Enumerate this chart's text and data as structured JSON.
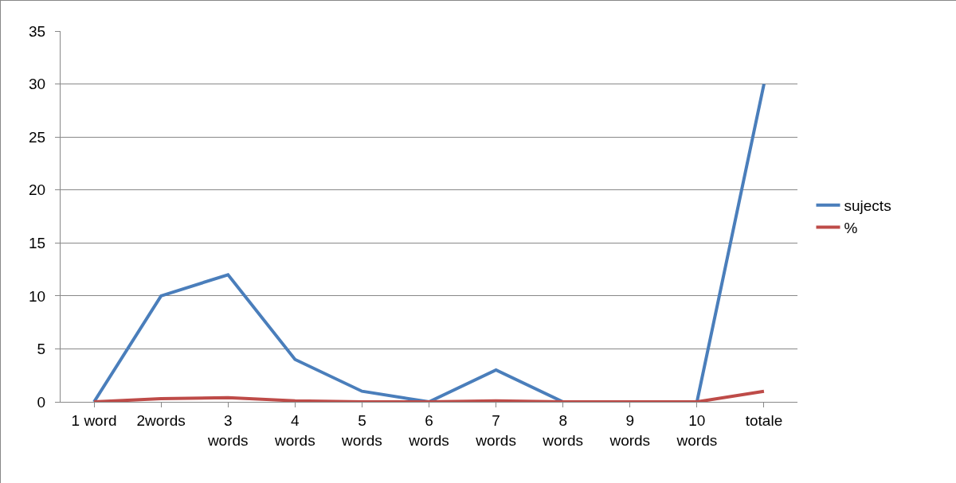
{
  "chart_data": {
    "type": "line",
    "categories": [
      "1 word",
      "2words",
      "3\nwords",
      "4\nwords",
      "5\nwords",
      "6\nwords",
      "7\nwords",
      "8\nwords",
      "9\nwords",
      "10\nwords",
      "totale"
    ],
    "series": [
      {
        "name": "sujects",
        "color": "#4a7ebb",
        "values": [
          0,
          10,
          12,
          4,
          1,
          0,
          3,
          0,
          0,
          0,
          30
        ]
      },
      {
        "name": "%",
        "color": "#be4b48",
        "values": [
          0,
          0.3,
          0.4,
          0.1,
          0,
          0,
          0.1,
          0,
          0,
          0,
          1
        ]
      }
    ],
    "ylim": [
      0,
      35
    ],
    "yticks": [
      0,
      5,
      10,
      15,
      20,
      25,
      30,
      35
    ],
    "grid": "y",
    "legend": "right",
    "marker": "none",
    "line_style": "solid"
  }
}
